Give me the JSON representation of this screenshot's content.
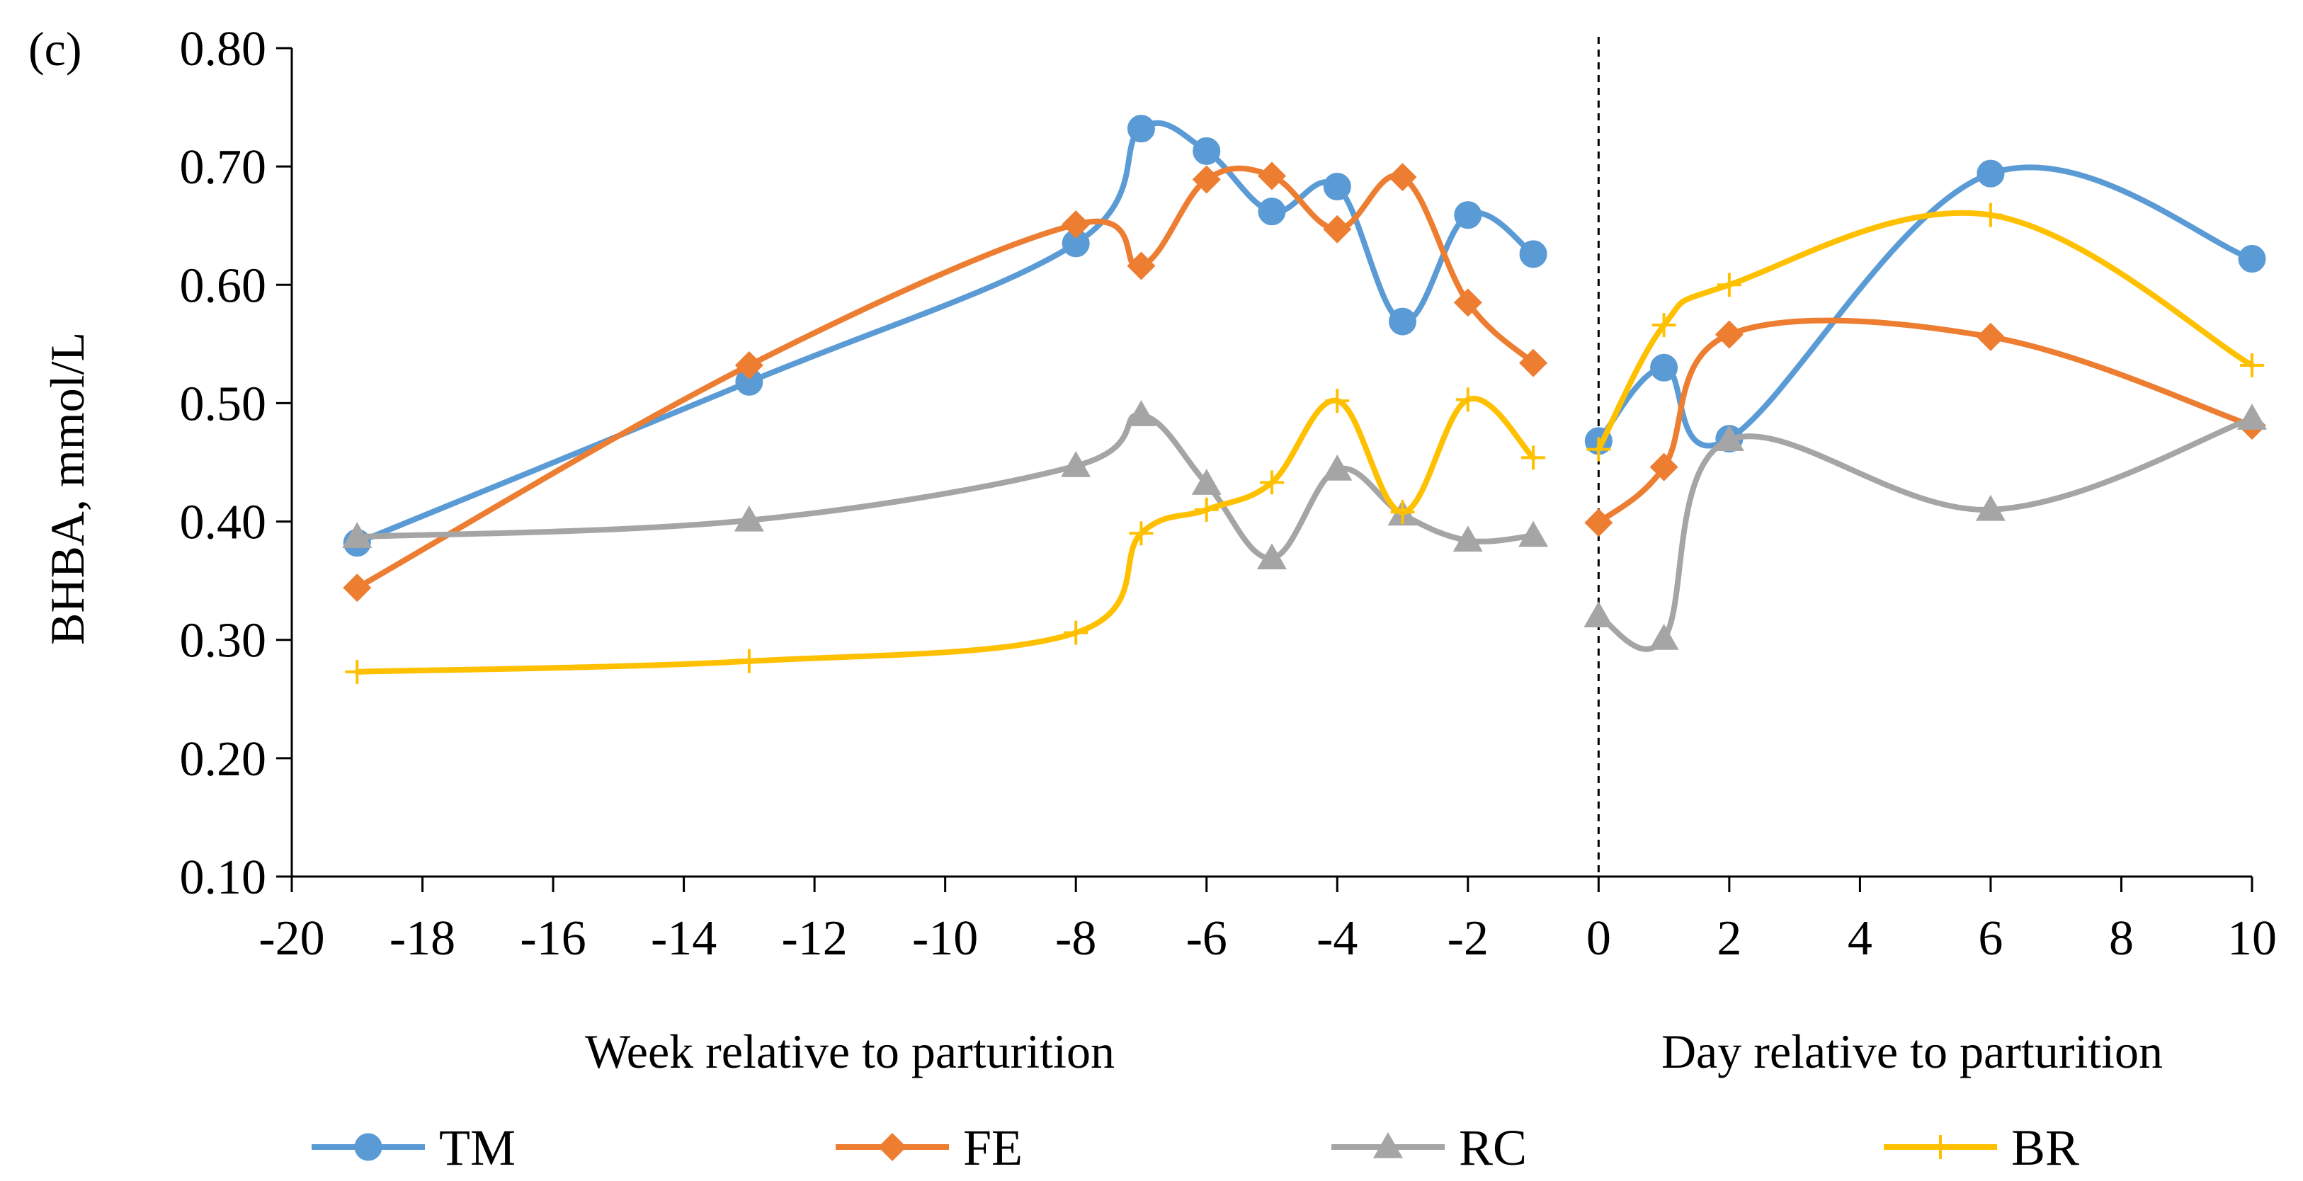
{
  "panel_label": "(c)",
  "chart_data": {
    "type": "line",
    "title": "",
    "ylabel": "BHBA, mmol/L",
    "ylim": [
      0.1,
      0.8
    ],
    "yticks": [
      "0.10",
      "0.20",
      "0.30",
      "0.40",
      "0.50",
      "0.60",
      "0.70",
      "0.80"
    ],
    "xlim": [
      -20,
      10
    ],
    "xticks": [
      "-20",
      "-18",
      "-16",
      "-14",
      "-12",
      "-10",
      "-8",
      "-6",
      "-4",
      "-2",
      "0",
      "2",
      "4",
      "6",
      "8",
      "10"
    ],
    "xlabel_left": "Week relative to parturition",
    "xlabel_right": "Day relative to parturition",
    "divider_x": 0,
    "grid": false,
    "legend_position": "bottom",
    "series": [
      {
        "name": "TM",
        "color": "#5B9BD5",
        "marker": "circle",
        "segments": [
          {
            "x": [
              -19,
              -13,
              -8,
              -7,
              -6,
              -5,
              -4,
              -3,
              -2,
              -1
            ],
            "y": [
              0.382,
              0.518,
              0.635,
              0.732,
              0.713,
              0.662,
              0.683,
              0.569,
              0.659,
              0.626
            ]
          },
          {
            "x": [
              0,
              1,
              2,
              6,
              10
            ],
            "y": [
              0.468,
              0.53,
              0.47,
              0.694,
              0.622
            ]
          }
        ]
      },
      {
        "name": "FE",
        "color": "#ED7D31",
        "marker": "diamond",
        "segments": [
          {
            "x": [
              -19,
              -13,
              -8,
              -7,
              -6,
              -5,
              -4,
              -3,
              -2,
              -1
            ],
            "y": [
              0.344,
              0.532,
              0.651,
              0.616,
              0.689,
              0.692,
              0.647,
              0.691,
              0.585,
              0.534
            ]
          },
          {
            "x": [
              0,
              1,
              2,
              6,
              10
            ],
            "y": [
              0.399,
              0.446,
              0.558,
              0.556,
              0.481
            ]
          }
        ]
      },
      {
        "name": "RC",
        "color": "#A5A5A5",
        "marker": "triangle",
        "segments": [
          {
            "x": [
              -19,
              -13,
              -8,
              -7,
              -6,
              -5,
              -4,
              -3,
              -2,
              -1
            ],
            "y": [
              0.387,
              0.401,
              0.447,
              0.49,
              0.432,
              0.369,
              0.444,
              0.406,
              0.384,
              0.388
            ]
          },
          {
            "x": [
              0,
              1,
              2,
              6,
              10
            ],
            "y": [
              0.32,
              0.301,
              0.469,
              0.41,
              0.487
            ]
          }
        ]
      },
      {
        "name": "BR",
        "color": "#FFC000",
        "marker": "plus",
        "segments": [
          {
            "x": [
              -19,
              -13,
              -8,
              -7,
              -6,
              -5,
              -4,
              -3,
              -2,
              -1
            ],
            "y": [
              0.273,
              0.282,
              0.306,
              0.39,
              0.41,
              0.433,
              0.502,
              0.408,
              0.503,
              0.454
            ]
          },
          {
            "x": [
              0,
              1,
              2,
              6,
              10
            ],
            "y": [
              0.461,
              0.566,
              0.6,
              0.659,
              0.532
            ]
          }
        ]
      }
    ]
  }
}
